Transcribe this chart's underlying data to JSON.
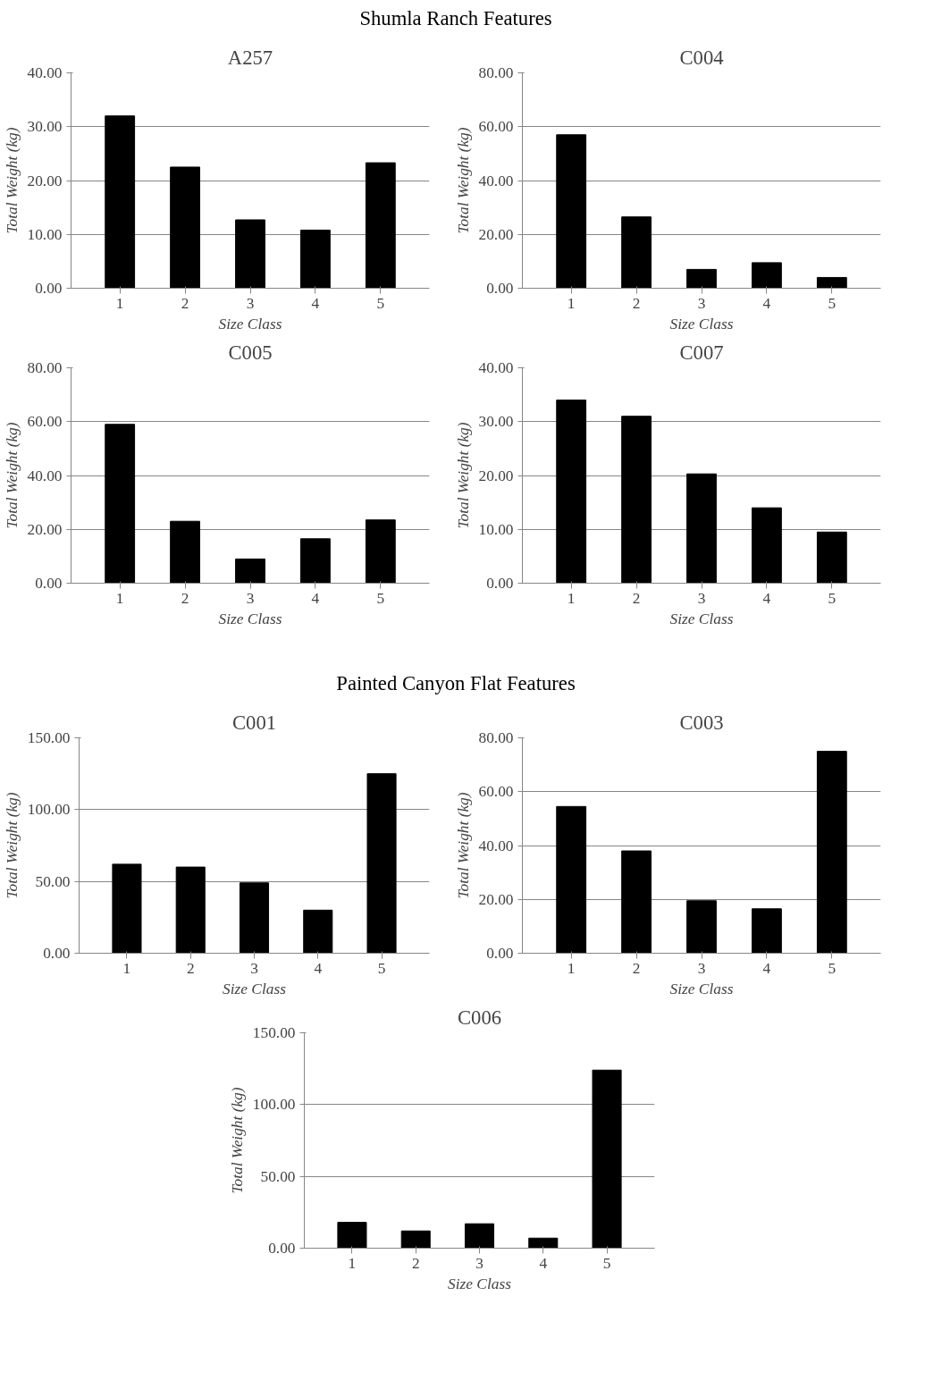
{
  "chart_data": [
    {
      "type": "other",
      "title": "Shumla Ranch Features"
    },
    {
      "type": "bar",
      "title": "A257",
      "xlabel": "Size Class",
      "ylabel": "Total Weight (kg)",
      "categories": [
        "1",
        "2",
        "3",
        "4",
        "5"
      ],
      "values": [
        32,
        22.5,
        12.7,
        10.8,
        23.3
      ],
      "color": "#000000",
      "ylim": [
        0,
        40
      ],
      "yticks": [
        {
          "value": 0,
          "label": "0.00"
        },
        {
          "value": 10,
          "label": "10.00"
        },
        {
          "value": 20,
          "label": "20.00"
        },
        {
          "value": 30,
          "label": "30.00"
        },
        {
          "value": 40,
          "label": "40.00"
        }
      ],
      "grid": "y"
    },
    {
      "type": "bar",
      "title": "C004",
      "xlabel": "Size Class",
      "ylabel": "Total Weight (kg)",
      "categories": [
        "1",
        "2",
        "3",
        "4",
        "5"
      ],
      "values": [
        57,
        26.5,
        7,
        9.5,
        4
      ],
      "color": "#000000",
      "ylim": [
        0,
        80
      ],
      "yticks": [
        {
          "value": 0,
          "label": "0.00"
        },
        {
          "value": 20,
          "label": "20.00"
        },
        {
          "value": 40,
          "label": "40.00"
        },
        {
          "value": 60,
          "label": "60.00"
        },
        {
          "value": 80,
          "label": "80.00"
        }
      ],
      "grid": "y"
    },
    {
      "type": "bar",
      "title": "C005",
      "xlabel": "Size Class",
      "ylabel": "Total Weight (kg)",
      "categories": [
        "1",
        "2",
        "3",
        "4",
        "5"
      ],
      "values": [
        59,
        23,
        9,
        16.5,
        23.5
      ],
      "color": "#000000",
      "ylim": [
        0,
        80
      ],
      "yticks": [
        {
          "value": 0,
          "label": "0.00"
        },
        {
          "value": 20,
          "label": "20.00"
        },
        {
          "value": 40,
          "label": "40.00"
        },
        {
          "value": 60,
          "label": "60.00"
        },
        {
          "value": 80,
          "label": "80.00"
        }
      ],
      "grid": "y"
    },
    {
      "type": "bar",
      "title": "C007",
      "xlabel": "Size Class",
      "ylabel": "Total Weight (kg)",
      "categories": [
        "1",
        "2",
        "3",
        "4",
        "5"
      ],
      "values": [
        34,
        31,
        20.3,
        14,
        9.5
      ],
      "color": "#000000",
      "ylim": [
        0,
        40
      ],
      "yticks": [
        {
          "value": 0,
          "label": "0.00"
        },
        {
          "value": 10,
          "label": "10.00"
        },
        {
          "value": 20,
          "label": "20.00"
        },
        {
          "value": 30,
          "label": "30.00"
        },
        {
          "value": 40,
          "label": "40.00"
        }
      ],
      "grid": "y"
    },
    {
      "type": "other",
      "title": "Painted Canyon Flat Features"
    },
    {
      "type": "bar",
      "title": "C001",
      "xlabel": "Size Class",
      "ylabel": "Total Weight (kg)",
      "categories": [
        "1",
        "2",
        "3",
        "4",
        "5"
      ],
      "values": [
        62,
        60,
        49,
        30,
        125
      ],
      "color": "#000000",
      "ylim": [
        0,
        150
      ],
      "yticks": [
        {
          "value": 0,
          "label": "0.00"
        },
        {
          "value": 50,
          "label": "50.00"
        },
        {
          "value": 100,
          "label": "100.00"
        },
        {
          "value": 150,
          "label": "150.00"
        }
      ],
      "grid": "y"
    },
    {
      "type": "bar",
      "title": "C003",
      "xlabel": "Size Class",
      "ylabel": "Total Weight (kg)",
      "categories": [
        "1",
        "2",
        "3",
        "4",
        "5"
      ],
      "values": [
        54.5,
        38,
        19.5,
        16.5,
        75
      ],
      "color": "#000000",
      "ylim": [
        0,
        80
      ],
      "yticks": [
        {
          "value": 0,
          "label": "0.00"
        },
        {
          "value": 20,
          "label": "20.00"
        },
        {
          "value": 40,
          "label": "40.00"
        },
        {
          "value": 60,
          "label": "60.00"
        },
        {
          "value": 80,
          "label": "80.00"
        }
      ],
      "grid": "y"
    },
    {
      "type": "bar",
      "title": "C006",
      "xlabel": "Size Class",
      "ylabel": "Total Weight (kg)",
      "categories": [
        "1",
        "2",
        "3",
        "4",
        "5"
      ],
      "values": [
        18,
        12,
        17,
        7,
        124
      ],
      "color": "#000000",
      "ylim": [
        0,
        150
      ],
      "yticks": [
        {
          "value": 0,
          "label": "0.00"
        },
        {
          "value": 50,
          "label": "50.00"
        },
        {
          "value": 100,
          "label": "100.00"
        },
        {
          "value": 150,
          "label": "150.00"
        }
      ],
      "grid": "y"
    }
  ]
}
